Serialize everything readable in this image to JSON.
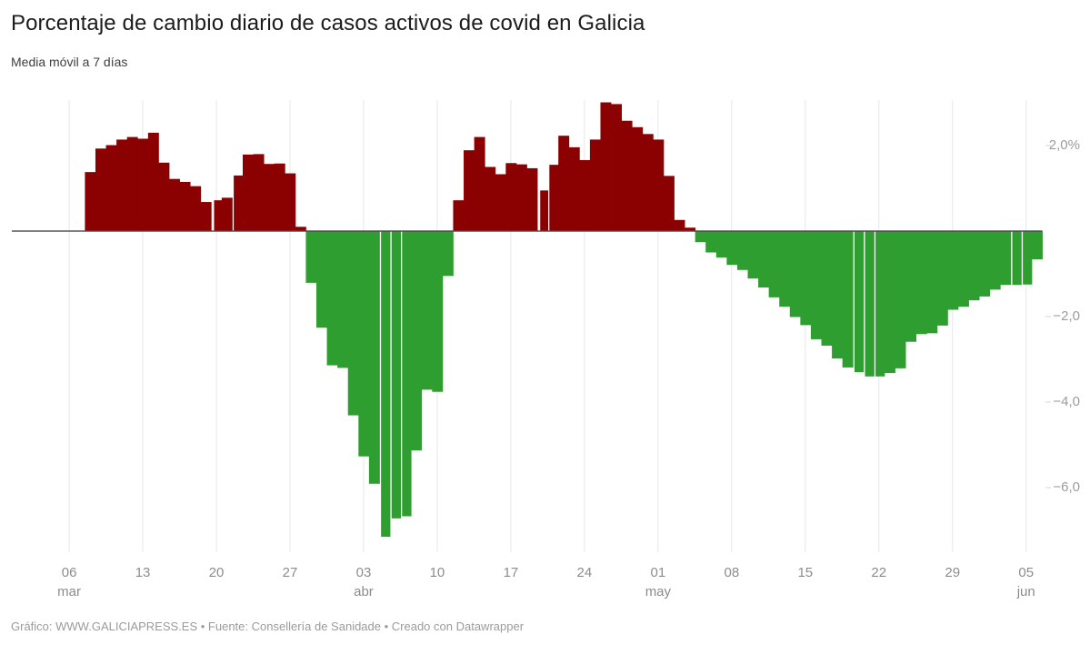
{
  "header": {
    "title": "Porcentaje de cambio diario de casos activos de covid en Galicia",
    "subtitle": "Media móvil a 7 días"
  },
  "footer": {
    "credit": "Gráfico: WWW.GALICIAPRESS.ES • Fuente: Consellería de Sanidade • Creado con Datawrapper"
  },
  "chart_data": {
    "type": "bar",
    "title": "Porcentaje de cambio diario de casos activos de covid en Galicia",
    "subtitle": "Media móvil a 7 días",
    "xlabel": "",
    "ylabel": "",
    "unit": "%",
    "ylim": [
      -7.6,
      3.2
    ],
    "grid": "vertical-weekly",
    "legend": "none",
    "positive_color": "#8b0000",
    "negative_color": "#2f9e30",
    "gridline_color": "#e7e7e7",
    "zeroline_color": "#4a4a4a",
    "y_ticks": [
      {
        "label": "2,0%",
        "value": 2
      },
      {
        "label": "−2,0",
        "value": -2
      },
      {
        "label": "−4,0",
        "value": -4
      },
      {
        "label": "−6,0",
        "value": -6
      }
    ],
    "x_ticks": [
      {
        "day": "06",
        "month": "mar"
      },
      {
        "day": "13"
      },
      {
        "day": "20"
      },
      {
        "day": "27"
      },
      {
        "day": "03",
        "month": "abr"
      },
      {
        "day": "10"
      },
      {
        "day": "17"
      },
      {
        "day": "24"
      },
      {
        "day": "01",
        "month": "may"
      },
      {
        "day": "08"
      },
      {
        "day": "15"
      },
      {
        "day": "22"
      },
      {
        "day": "29"
      },
      {
        "day": "05",
        "month": "jun"
      }
    ],
    "series": [
      {
        "date": "08 mar",
        "value": 1.38
      },
      {
        "date": "09 mar",
        "value": 1.93
      },
      {
        "date": "10 mar",
        "value": 2.01
      },
      {
        "date": "11 mar",
        "value": 2.14
      },
      {
        "date": "12 mar",
        "value": 2.2
      },
      {
        "date": "13 mar",
        "value": 2.16
      },
      {
        "date": "14 mar",
        "value": 2.3
      },
      {
        "date": "15 mar",
        "value": 1.6
      },
      {
        "date": "16 mar",
        "value": 1.22
      },
      {
        "date": "17 mar",
        "value": 1.15
      },
      {
        "date": "18 mar",
        "value": 1.05
      },
      {
        "date": "19 mar",
        "value": 0.68
      },
      {
        "date": "20 mar",
        "value": 0.72,
        "gap": 2
      },
      {
        "date": "21 mar",
        "value": 0.78
      },
      {
        "date": "22 mar",
        "value": 1.3,
        "gap": 1
      },
      {
        "date": "23 mar",
        "value": 1.79
      },
      {
        "date": "24 mar",
        "value": 1.8
      },
      {
        "date": "25 mar",
        "value": 1.57
      },
      {
        "date": "26 mar",
        "value": 1.58
      },
      {
        "date": "27 mar",
        "value": 1.35
      },
      {
        "date": "28 mar",
        "value": 0.1
      },
      {
        "date": "29 mar",
        "value": -1.21
      },
      {
        "date": "30 mar",
        "value": -2.26
      },
      {
        "date": "31 mar",
        "value": -3.14
      },
      {
        "date": "01 abr",
        "value": -3.2
      },
      {
        "date": "02 abr",
        "value": -4.31
      },
      {
        "date": "03 abr",
        "value": -5.27
      },
      {
        "date": "04 abr",
        "value": -5.91
      },
      {
        "date": "05 abr",
        "value": -7.15,
        "gap": 1
      },
      {
        "date": "06 abr",
        "value": -6.72,
        "gap": 1
      },
      {
        "date": "07 abr",
        "value": -6.67,
        "gap": 1
      },
      {
        "date": "08 abr",
        "value": -5.13
      },
      {
        "date": "09 abr",
        "value": -3.71
      },
      {
        "date": "10 abr",
        "value": -3.76
      },
      {
        "date": "11 abr",
        "value": -1.05
      },
      {
        "date": "12 abr",
        "value": 0.72
      },
      {
        "date": "13 abr",
        "value": 1.89
      },
      {
        "date": "14 abr",
        "value": 2.2
      },
      {
        "date": "15 abr",
        "value": 1.5
      },
      {
        "date": "16 abr",
        "value": 1.33
      },
      {
        "date": "17 abr",
        "value": 1.59
      },
      {
        "date": "18 abr",
        "value": 1.56
      },
      {
        "date": "19 abr",
        "value": 1.47
      },
      {
        "date": "20 abr",
        "value": 0.95,
        "gap": 2
      },
      {
        "date": "21 abr",
        "value": 1.55,
        "gap": 1
      },
      {
        "date": "22 abr",
        "value": 2.23
      },
      {
        "date": "23 abr",
        "value": 1.96
      },
      {
        "date": "24 abr",
        "value": 1.66
      },
      {
        "date": "25 abr",
        "value": 2.14
      },
      {
        "date": "26 abr",
        "value": 3.01
      },
      {
        "date": "27 abr",
        "value": 2.97
      },
      {
        "date": "28 abr",
        "value": 2.58
      },
      {
        "date": "29 abr",
        "value": 2.43
      },
      {
        "date": "30 abr",
        "value": 2.27
      },
      {
        "date": "01 may",
        "value": 2.14
      },
      {
        "date": "02 may",
        "value": 1.29
      },
      {
        "date": "03 may",
        "value": 0.26
      },
      {
        "date": "04 may",
        "value": 0.08
      },
      {
        "date": "05 may",
        "value": -0.26
      },
      {
        "date": "06 may",
        "value": -0.5
      },
      {
        "date": "07 may",
        "value": -0.62
      },
      {
        "date": "08 may",
        "value": -0.79
      },
      {
        "date": "09 may",
        "value": -0.91
      },
      {
        "date": "10 may",
        "value": -1.11
      },
      {
        "date": "11 may",
        "value": -1.32
      },
      {
        "date": "12 may",
        "value": -1.55
      },
      {
        "date": "13 may",
        "value": -1.77
      },
      {
        "date": "14 may",
        "value": -2.01
      },
      {
        "date": "15 may",
        "value": -2.2
      },
      {
        "date": "16 may",
        "value": -2.53
      },
      {
        "date": "17 may",
        "value": -2.68
      },
      {
        "date": "18 may",
        "value": -2.98
      },
      {
        "date": "19 may",
        "value": -3.19
      },
      {
        "date": "20 may",
        "value": -3.3,
        "gap": 1
      },
      {
        "date": "21 may",
        "value": -3.4,
        "gap": 1
      },
      {
        "date": "22 may",
        "value": -3.4,
        "gap": 1
      },
      {
        "date": "23 may",
        "value": -3.32
      },
      {
        "date": "24 may",
        "value": -3.21
      },
      {
        "date": "25 may",
        "value": -2.59
      },
      {
        "date": "26 may",
        "value": -2.41
      },
      {
        "date": "27 may",
        "value": -2.39
      },
      {
        "date": "28 may",
        "value": -2.21
      },
      {
        "date": "29 may",
        "value": -1.84
      },
      {
        "date": "30 may",
        "value": -1.77
      },
      {
        "date": "31 may",
        "value": -1.62
      },
      {
        "date": "01 jun",
        "value": -1.53
      },
      {
        "date": "02 jun",
        "value": -1.37
      },
      {
        "date": "03 jun",
        "value": -1.26
      },
      {
        "date": "04 jun",
        "value": -1.26,
        "gap": 1
      },
      {
        "date": "05 jun",
        "value": -1.25,
        "gap": 1
      },
      {
        "date": "06 jun",
        "value": -0.66
      }
    ]
  }
}
